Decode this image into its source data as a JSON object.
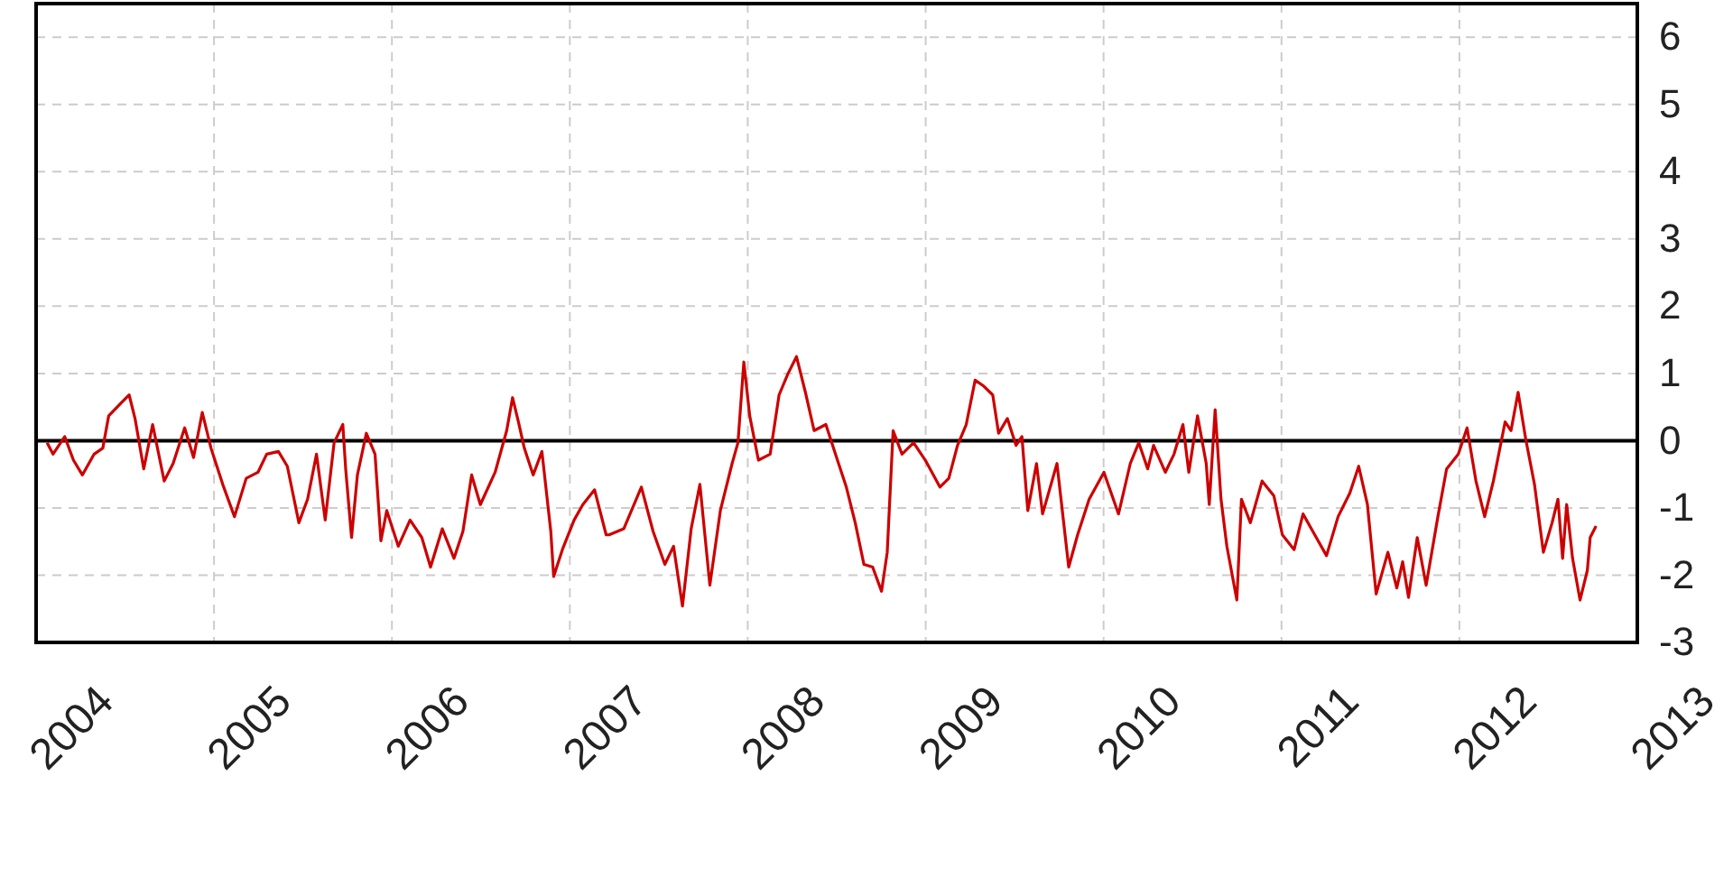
{
  "chart_data": {
    "type": "line",
    "xlim": [
      2004,
      2013
    ],
    "xticks": [
      2004,
      2005,
      2006,
      2007,
      2008,
      2009,
      2010,
      2011,
      2012,
      2013
    ],
    "ylim": [
      -3,
      6.5
    ],
    "yticks": [
      -3,
      -2,
      -1,
      0,
      1,
      2,
      3,
      4,
      5,
      6
    ],
    "grid": true,
    "marker": "none",
    "line_style": "solid",
    "ref_lines": [
      {
        "axis": "y",
        "value": 0,
        "color": "#000000"
      }
    ],
    "series": [
      {
        "color": "#cc0000",
        "x": [
          2004.062,
          2004.095,
          2004.161,
          2004.21,
          2004.26,
          2004.326,
          2004.375,
          2004.408,
          2004.474,
          2004.523,
          2004.556,
          2004.605,
          2004.655,
          2004.72,
          2004.77,
          2004.835,
          2004.885,
          2004.934,
          2004.983,
          2005.049,
          2005.115,
          2005.181,
          2005.247,
          2005.296,
          2005.362,
          2005.412,
          2005.477,
          2005.526,
          2005.576,
          2005.625,
          2005.675,
          2005.724,
          2005.74,
          2005.773,
          2005.806,
          2005.856,
          2005.905,
          2005.938,
          2005.971,
          2006.036,
          2006.102,
          2006.168,
          2006.217,
          2006.283,
          2006.349,
          2006.399,
          2006.448,
          2006.497,
          2006.58,
          2006.645,
          2006.678,
          2006.711,
          2006.744,
          2006.794,
          2006.843,
          2006.893,
          2006.909,
          2006.958,
          2007.024,
          2007.073,
          2007.139,
          2007.204,
          2007.221,
          2007.303,
          2007.402,
          2007.468,
          2007.534,
          2007.583,
          2007.633,
          2007.682,
          2007.731,
          2007.787,
          2007.846,
          2007.912,
          2007.945,
          2007.978,
          2008.011,
          2008.06,
          2008.126,
          2008.176,
          2008.225,
          2008.274,
          2008.324,
          2008.373,
          2008.439,
          2008.488,
          2008.554,
          2008.604,
          2008.653,
          2008.702,
          2008.752,
          2008.784,
          2008.817,
          2008.867,
          2008.932,
          2008.998,
          2009.08,
          2009.13,
          2009.179,
          2009.228,
          2009.278,
          2009.327,
          2009.377,
          2009.41,
          2009.459,
          2009.508,
          2009.541,
          2009.574,
          2009.623,
          2009.657,
          2009.738,
          2009.804,
          2009.854,
          2009.919,
          2010.002,
          2010.084,
          2010.15,
          2010.198,
          2010.248,
          2010.281,
          2010.347,
          2010.396,
          2010.446,
          2010.479,
          2010.528,
          2010.577,
          2010.594,
          2010.627,
          2010.66,
          2010.693,
          2010.749,
          2010.775,
          2010.825,
          2010.891,
          2010.957,
          2011.005,
          2011.071,
          2011.121,
          2011.187,
          2011.253,
          2011.318,
          2011.384,
          2011.434,
          2011.483,
          2011.532,
          2011.598,
          2011.648,
          2011.681,
          2011.714,
          2011.763,
          2011.813,
          2011.879,
          2011.928,
          2011.994,
          2012.043,
          2012.093,
          2012.142,
          2012.191,
          2012.257,
          2012.29,
          2012.33,
          2012.373,
          2012.422,
          2012.472,
          2012.521,
          2012.554,
          2012.58,
          2012.603,
          2012.636,
          2012.678,
          2012.719,
          2012.735,
          2012.768
        ],
        "values": [
          -0.03,
          -0.2,
          0.06,
          -0.29,
          -0.51,
          -0.2,
          -0.11,
          0.37,
          0.55,
          0.68,
          0.33,
          -0.42,
          0.24,
          -0.6,
          -0.34,
          0.19,
          -0.25,
          0.42,
          -0.11,
          -0.65,
          -1.13,
          -0.56,
          -0.47,
          -0.2,
          -0.16,
          -0.38,
          -1.22,
          -0.87,
          -0.2,
          -1.18,
          -0.03,
          0.24,
          -0.42,
          -1.44,
          -0.51,
          0.11,
          -0.2,
          -1.49,
          -1.04,
          -1.57,
          -1.18,
          -1.44,
          -1.88,
          -1.31,
          -1.75,
          -1.35,
          -0.51,
          -0.95,
          -0.47,
          0.15,
          0.64,
          0.28,
          -0.11,
          -0.51,
          -0.16,
          -1.35,
          -2.02,
          -1.62,
          -1.18,
          -0.95,
          -0.73,
          -1.4,
          -1.4,
          -1.31,
          -0.69,
          -1.35,
          -1.84,
          -1.57,
          -2.46,
          -1.31,
          -0.65,
          -2.15,
          -1.04,
          -0.34,
          -0.03,
          1.17,
          0.37,
          -0.29,
          -0.2,
          0.68,
          0.99,
          1.25,
          0.72,
          0.15,
          0.24,
          -0.16,
          -0.69,
          -1.22,
          -1.84,
          -1.88,
          -2.24,
          -1.66,
          0.15,
          -0.2,
          -0.03,
          -0.29,
          -0.69,
          -0.56,
          -0.07,
          0.24,
          0.9,
          0.81,
          0.68,
          0.11,
          0.33,
          -0.07,
          0.06,
          -1.04,
          -0.34,
          -1.09,
          -0.34,
          -1.88,
          -1.4,
          -0.87,
          -0.47,
          -1.09,
          -0.34,
          -0.03,
          -0.42,
          -0.07,
          -0.47,
          -0.2,
          0.24,
          -0.47,
          0.37,
          -0.34,
          -0.95,
          0.46,
          -0.87,
          -1.57,
          -2.37,
          -0.87,
          -1.22,
          -0.6,
          -0.82,
          -1.4,
          -1.62,
          -1.09,
          -1.4,
          -1.71,
          -1.13,
          -0.78,
          -0.38,
          -0.95,
          -2.28,
          -1.66,
          -2.19,
          -1.8,
          -2.33,
          -1.44,
          -2.15,
          -1.13,
          -0.42,
          -0.2,
          0.19,
          -0.6,
          -1.13,
          -0.6,
          0.28,
          0.15,
          0.72,
          0.02,
          -0.65,
          -1.66,
          -1.22,
          -0.87,
          -1.75,
          -0.95,
          -1.75,
          -2.37,
          -1.93,
          -1.44,
          -1.27
        ]
      }
    ]
  }
}
